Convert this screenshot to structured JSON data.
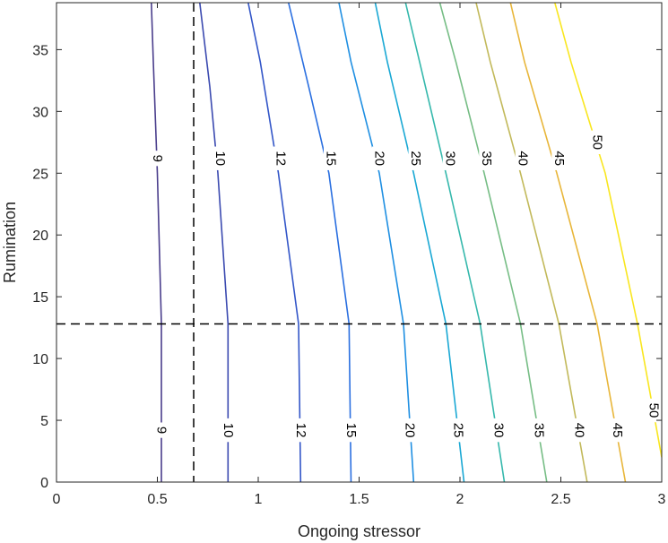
{
  "chart_data": {
    "type": "contour",
    "xlabel": "Ongoing stressor",
    "ylabel": "Rumination",
    "xlim": [
      0,
      3
    ],
    "ylim": [
      0,
      38.8
    ],
    "xticks": [
      "0",
      "0.5",
      "1",
      "1.5",
      "2",
      "2.5",
      "3"
    ],
    "yticks": [
      "0",
      "5",
      "10",
      "15",
      "20",
      "25",
      "30",
      "35"
    ],
    "grid": false,
    "reference_lines": {
      "vertical_x": 0.68,
      "horizontal_y": 12.8,
      "style": "dashed",
      "color": "#000000"
    },
    "contour_levels": [
      {
        "level": 9,
        "label": "9",
        "color": "#4a3e8c",
        "points": [
          [
            0.52,
            0
          ],
          [
            0.52,
            12.8
          ],
          [
            0.5,
            25
          ],
          [
            0.48,
            34
          ],
          [
            0.47,
            38.8
          ]
        ]
      },
      {
        "level": 10,
        "label": "10",
        "color": "#3b4ab0",
        "points": [
          [
            0.85,
            0
          ],
          [
            0.85,
            12.8
          ],
          [
            0.8,
            25
          ],
          [
            0.76,
            32
          ],
          [
            0.71,
            38.8
          ]
        ]
      },
      {
        "level": 12,
        "label": "12",
        "color": "#3356c8",
        "points": [
          [
            1.21,
            0
          ],
          [
            1.2,
            12.8
          ],
          [
            1.1,
            25
          ],
          [
            1.01,
            34
          ],
          [
            0.95,
            38.8
          ]
        ]
      },
      {
        "level": 15,
        "label": "15",
        "color": "#2a6fe0",
        "points": [
          [
            1.46,
            0
          ],
          [
            1.45,
            12.8
          ],
          [
            1.35,
            25
          ],
          [
            1.25,
            32
          ],
          [
            1.15,
            38.8
          ]
        ]
      },
      {
        "level": 20,
        "label": "20",
        "color": "#1f8fe2",
        "points": [
          [
            1.77,
            0
          ],
          [
            1.72,
            12.8
          ],
          [
            1.6,
            25
          ],
          [
            1.46,
            34
          ],
          [
            1.4,
            38.8
          ]
        ]
      },
      {
        "level": 25,
        "label": "25",
        "color": "#1aa8d4",
        "points": [
          [
            2.02,
            0
          ],
          [
            1.93,
            12.8
          ],
          [
            1.77,
            25
          ],
          [
            1.64,
            34
          ],
          [
            1.58,
            38.8
          ]
        ]
      },
      {
        "level": 30,
        "label": "30",
        "color": "#35b8ac",
        "points": [
          [
            2.22,
            0
          ],
          [
            2.1,
            12.8
          ],
          [
            1.93,
            25
          ],
          [
            1.8,
            34
          ],
          [
            1.73,
            38.8
          ]
        ]
      },
      {
        "level": 35,
        "label": "35",
        "color": "#76bd85",
        "points": [
          [
            2.43,
            0
          ],
          [
            2.3,
            12.8
          ],
          [
            2.12,
            25
          ],
          [
            1.98,
            34
          ],
          [
            1.9,
            38.8
          ]
        ]
      },
      {
        "level": 40,
        "label": "40",
        "color": "#c2b95a",
        "points": [
          [
            2.63,
            0
          ],
          [
            2.49,
            12.8
          ],
          [
            2.3,
            25
          ],
          [
            2.15,
            34
          ],
          [
            2.08,
            38.8
          ]
        ]
      },
      {
        "level": 45,
        "label": "45",
        "color": "#e8b63a",
        "points": [
          [
            2.82,
            0
          ],
          [
            2.68,
            12.8
          ],
          [
            2.48,
            25
          ],
          [
            2.32,
            34
          ],
          [
            2.25,
            38.8
          ]
        ]
      },
      {
        "level": 50,
        "label": "50",
        "color": "#f9e61f",
        "points": [
          [
            3.0,
            2
          ],
          [
            2.88,
            12.8
          ],
          [
            2.72,
            25
          ],
          [
            2.55,
            34
          ],
          [
            2.47,
            38.8
          ]
        ]
      }
    ],
    "label_rows": {
      "upper": [
        {
          "label": "9",
          "x": 0.5,
          "y": 26.2
        },
        {
          "label": "10",
          "x": 0.81,
          "y": 26.2
        },
        {
          "label": "12",
          "x": 1.11,
          "y": 26.2
        },
        {
          "label": "15",
          "x": 1.36,
          "y": 26.2
        },
        {
          "label": "20",
          "x": 1.6,
          "y": 26.2
        },
        {
          "label": "25",
          "x": 1.78,
          "y": 26.2
        },
        {
          "label": "30",
          "x": 1.95,
          "y": 26.2
        },
        {
          "label": "35",
          "x": 2.13,
          "y": 26.2
        },
        {
          "label": "40",
          "x": 2.31,
          "y": 26.2
        },
        {
          "label": "45",
          "x": 2.49,
          "y": 26.2
        },
        {
          "label": "50",
          "x": 2.68,
          "y": 27.5
        }
      ],
      "lower": [
        {
          "label": "9",
          "x": 0.52,
          "y": 4.2
        },
        {
          "label": "10",
          "x": 0.85,
          "y": 4.2
        },
        {
          "label": "12",
          "x": 1.21,
          "y": 4.2
        },
        {
          "label": "15",
          "x": 1.46,
          "y": 4.2
        },
        {
          "label": "20",
          "x": 1.75,
          "y": 4.2
        },
        {
          "label": "25",
          "x": 1.99,
          "y": 4.2
        },
        {
          "label": "30",
          "x": 2.19,
          "y": 4.2
        },
        {
          "label": "35",
          "x": 2.39,
          "y": 4.2
        },
        {
          "label": "40",
          "x": 2.59,
          "y": 4.2
        },
        {
          "label": "45",
          "x": 2.78,
          "y": 4.2
        },
        {
          "label": "50",
          "x": 2.96,
          "y": 5.8
        }
      ]
    }
  }
}
